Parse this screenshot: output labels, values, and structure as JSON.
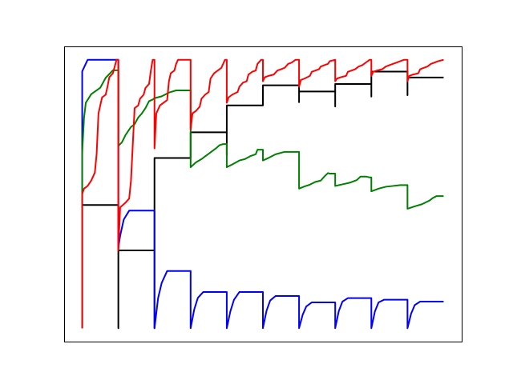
{
  "chart_data": {
    "type": "line",
    "title": "",
    "xlabel": "",
    "ylabel": "",
    "axes_ticks_visible": false,
    "grid": false,
    "legend": "none",
    "xlim": [
      -0.5,
      10.5
    ],
    "ylim": [
      -0.05,
      1.05
    ],
    "colors": {
      "black": "#000000",
      "blue": "#0000ff",
      "green": "#008000",
      "red": "#ff0000"
    },
    "series": [
      {
        "color": "black",
        "points": [
          [
            0,
            0
          ],
          [
            0,
            0.459
          ],
          [
            1,
            0.459
          ],
          [
            1,
            0.247
          ],
          [
            1,
            0
          ],
          [
            1,
            0.29
          ],
          [
            2,
            0.29
          ],
          [
            2,
            0
          ],
          [
            2,
            0.634
          ],
          [
            3,
            0.634
          ],
          [
            3,
            0.73
          ],
          [
            4,
            0.73
          ],
          [
            4,
            0.645
          ],
          [
            4,
            0.83
          ],
          [
            5,
            0.83
          ],
          [
            5,
            0.905
          ],
          [
            6,
            0.905
          ],
          [
            6,
            0.842
          ],
          [
            6,
            0.882
          ],
          [
            7,
            0.882
          ],
          [
            7,
            0.826
          ],
          [
            7,
            0.91
          ],
          [
            8,
            0.91
          ],
          [
            8,
            0.863
          ],
          [
            8,
            0.956
          ],
          [
            9,
            0.956
          ],
          [
            9,
            0.868
          ],
          [
            9,
            0.934
          ],
          [
            10,
            0.934
          ]
        ]
      },
      {
        "color": "blue",
        "points": [
          [
            0,
            0
          ],
          [
            0,
            0.957
          ],
          [
            0.15,
            1.0
          ],
          [
            1,
            1.0
          ],
          [
            1,
            0.3
          ],
          [
            1.05,
            0.344
          ],
          [
            1.15,
            0.405
          ],
          [
            1.3,
            0.438
          ],
          [
            2,
            0.438
          ],
          [
            2,
            0
          ],
          [
            2.1,
            0.112
          ],
          [
            2.2,
            0.169
          ],
          [
            2.35,
            0.213
          ],
          [
            3,
            0.213
          ],
          [
            3,
            0
          ],
          [
            3.1,
            0.07
          ],
          [
            3.2,
            0.113
          ],
          [
            3.35,
            0.135
          ],
          [
            4,
            0.135
          ],
          [
            4,
            0
          ],
          [
            4.1,
            0.063
          ],
          [
            4.2,
            0.106
          ],
          [
            4.35,
            0.135
          ],
          [
            5,
            0.135
          ],
          [
            5,
            0
          ],
          [
            5.1,
            0.065
          ],
          [
            5.2,
            0.103
          ],
          [
            5.35,
            0.12
          ],
          [
            6,
            0.12
          ],
          [
            6,
            0
          ],
          [
            6.1,
            0.05
          ],
          [
            6.2,
            0.081
          ],
          [
            6.35,
            0.096
          ],
          [
            7,
            0.096
          ],
          [
            7,
            0
          ],
          [
            7.1,
            0.064
          ],
          [
            7.2,
            0.099
          ],
          [
            7.35,
            0.112
          ],
          [
            8,
            0.112
          ],
          [
            8,
            0
          ],
          [
            8.1,
            0.063
          ],
          [
            8.2,
            0.096
          ],
          [
            8.35,
            0.106
          ],
          [
            9,
            0.106
          ],
          [
            9,
            0
          ],
          [
            9.1,
            0.054
          ],
          [
            9.2,
            0.086
          ],
          [
            9.35,
            0.099
          ],
          [
            10,
            0.099
          ]
        ]
      },
      {
        "color": "green",
        "points": [
          [
            0,
            0
          ],
          [
            0,
            0.655
          ],
          [
            0.05,
            0.783
          ],
          [
            0.1,
            0.84
          ],
          [
            0.25,
            0.872
          ],
          [
            0.5,
            0.896
          ],
          [
            0.65,
            0.933
          ],
          [
            0.8,
            0.954
          ],
          [
            0.85,
            0.961
          ],
          [
            1,
            0.961
          ],
          [
            1,
            0.679
          ],
          [
            1.1,
            0.693
          ],
          [
            1.2,
            0.72
          ],
          [
            1.35,
            0.75
          ],
          [
            1.45,
            0.76
          ],
          [
            1.55,
            0.785
          ],
          [
            1.65,
            0.8
          ],
          [
            1.75,
            0.82
          ],
          [
            1.85,
            0.846
          ],
          [
            1.95,
            0.852
          ],
          [
            2,
            0.857
          ],
          [
            2.2,
            0.864
          ],
          [
            2.4,
            0.878
          ],
          [
            2.6,
            0.886
          ],
          [
            3,
            0.886
          ],
          [
            3,
            0.6
          ],
          [
            3.15,
            0.618
          ],
          [
            3.3,
            0.63
          ],
          [
            3.5,
            0.65
          ],
          [
            3.7,
            0.67
          ],
          [
            3.8,
            0.682
          ],
          [
            3.9,
            0.686
          ],
          [
            4,
            0.686
          ],
          [
            4,
            0.6
          ],
          [
            4.15,
            0.61
          ],
          [
            4.35,
            0.625
          ],
          [
            4.5,
            0.63
          ],
          [
            4.65,
            0.641
          ],
          [
            4.8,
            0.648
          ],
          [
            4.85,
            0.665
          ],
          [
            5,
            0.665
          ],
          [
            5,
            0.625
          ],
          [
            5.15,
            0.634
          ],
          [
            5.35,
            0.648
          ],
          [
            5.6,
            0.657
          ],
          [
            6,
            0.657
          ],
          [
            6,
            0.52
          ],
          [
            6.15,
            0.528
          ],
          [
            6.3,
            0.535
          ],
          [
            6.45,
            0.545
          ],
          [
            6.6,
            0.55
          ],
          [
            6.7,
            0.565
          ],
          [
            6.8,
            0.578
          ],
          [
            6.85,
            0.576
          ],
          [
            7,
            0.576
          ],
          [
            7,
            0.53
          ],
          [
            7.2,
            0.536
          ],
          [
            7.4,
            0.542
          ],
          [
            7.6,
            0.552
          ],
          [
            7.7,
            0.565
          ],
          [
            7.85,
            0.565
          ],
          [
            7.95,
            0.562
          ],
          [
            8,
            0.562
          ],
          [
            8,
            0.51
          ],
          [
            8.2,
            0.52
          ],
          [
            8.4,
            0.527
          ],
          [
            8.6,
            0.53
          ],
          [
            8.8,
            0.533
          ],
          [
            9,
            0.533
          ],
          [
            9,
            0.445
          ],
          [
            9.2,
            0.454
          ],
          [
            9.4,
            0.462
          ],
          [
            9.6,
            0.475
          ],
          [
            9.7,
            0.485
          ],
          [
            9.8,
            0.492
          ],
          [
            10,
            0.492
          ]
        ]
      },
      {
        "color": "red",
        "points": [
          [
            0,
            0
          ],
          [
            0,
            0.5
          ],
          [
            0.05,
            0.52
          ],
          [
            0.15,
            0.53
          ],
          [
            0.25,
            0.55
          ],
          [
            0.35,
            0.58
          ],
          [
            0.4,
            0.65
          ],
          [
            0.45,
            0.8
          ],
          [
            0.55,
            0.86
          ],
          [
            0.65,
            0.87
          ],
          [
            0.7,
            0.9
          ],
          [
            0.75,
            0.935
          ],
          [
            0.85,
            0.95
          ],
          [
            0.9,
            0.975
          ],
          [
            0.95,
            1.0
          ],
          [
            1,
            1.0
          ],
          [
            1,
            0.29
          ],
          [
            1.05,
            0.45
          ],
          [
            1.2,
            0.468
          ],
          [
            1.3,
            0.483
          ],
          [
            1.35,
            0.55
          ],
          [
            1.45,
            0.82
          ],
          [
            1.55,
            0.83
          ],
          [
            1.6,
            0.855
          ],
          [
            1.7,
            0.87
          ],
          [
            1.75,
            0.895
          ],
          [
            1.85,
            0.91
          ],
          [
            1.9,
            0.96
          ],
          [
            1.95,
            1.0
          ],
          [
            2,
            1.0
          ],
          [
            2,
            0.67
          ],
          [
            2.05,
            0.8
          ],
          [
            2.15,
            0.83
          ],
          [
            2.3,
            0.845
          ],
          [
            2.35,
            0.85
          ],
          [
            2.4,
            0.92
          ],
          [
            2.45,
            0.95
          ],
          [
            2.55,
            0.96
          ],
          [
            2.6,
            0.985
          ],
          [
            2.65,
            1.0
          ],
          [
            3,
            1.0
          ],
          [
            3,
            0.74
          ],
          [
            3.05,
            0.8
          ],
          [
            3.15,
            0.81
          ],
          [
            3.25,
            0.825
          ],
          [
            3.3,
            0.855
          ],
          [
            3.4,
            0.87
          ],
          [
            3.5,
            0.88
          ],
          [
            3.55,
            0.93
          ],
          [
            3.65,
            0.95
          ],
          [
            3.75,
            0.96
          ],
          [
            3.85,
            0.97
          ],
          [
            3.9,
            0.985
          ],
          [
            3.95,
            1.0
          ],
          [
            4,
            1.0
          ],
          [
            4,
            0.84
          ],
          [
            4.05,
            0.86
          ],
          [
            4.15,
            0.87
          ],
          [
            4.3,
            0.88
          ],
          [
            4.35,
            0.9
          ],
          [
            4.45,
            0.915
          ],
          [
            4.55,
            0.92
          ],
          [
            4.6,
            0.945
          ],
          [
            4.7,
            0.955
          ],
          [
            4.8,
            0.96
          ],
          [
            4.85,
            0.985
          ],
          [
            4.95,
            1.0
          ],
          [
            5,
            1.0
          ],
          [
            5,
            0.92
          ],
          [
            5.05,
            0.935
          ],
          [
            5.15,
            0.94
          ],
          [
            5.3,
            0.945
          ],
          [
            5.4,
            0.96
          ],
          [
            5.5,
            0.965
          ],
          [
            5.6,
            0.97
          ],
          [
            5.7,
            0.985
          ],
          [
            5.8,
            0.99
          ],
          [
            5.9,
            1.0
          ],
          [
            6,
            1.0
          ],
          [
            6,
            0.9
          ],
          [
            6.05,
            0.925
          ],
          [
            6.15,
            0.93
          ],
          [
            6.3,
            0.94
          ],
          [
            6.35,
            0.955
          ],
          [
            6.45,
            0.96
          ],
          [
            6.55,
            0.965
          ],
          [
            6.6,
            0.975
          ],
          [
            6.7,
            0.98
          ],
          [
            6.8,
            0.985
          ],
          [
            6.85,
            0.995
          ],
          [
            7,
            1.0
          ],
          [
            7,
            0.92
          ],
          [
            7.05,
            0.93
          ],
          [
            7.15,
            0.935
          ],
          [
            7.3,
            0.94
          ],
          [
            7.35,
            0.955
          ],
          [
            7.45,
            0.96
          ],
          [
            7.55,
            0.965
          ],
          [
            7.65,
            0.975
          ],
          [
            7.75,
            0.98
          ],
          [
            7.85,
            0.99
          ],
          [
            7.95,
            1.0
          ],
          [
            8,
            1.0
          ],
          [
            8,
            0.94
          ],
          [
            8.05,
            0.955
          ],
          [
            8.15,
            0.96
          ],
          [
            8.3,
            0.965
          ],
          [
            8.4,
            0.975
          ],
          [
            8.5,
            0.98
          ],
          [
            8.6,
            0.985
          ],
          [
            8.7,
            0.99
          ],
          [
            8.8,
            0.995
          ],
          [
            8.9,
            1.0
          ],
          [
            9,
            1.0
          ],
          [
            9,
            0.92
          ],
          [
            9.05,
            0.94
          ],
          [
            9.15,
            0.945
          ],
          [
            9.3,
            0.95
          ],
          [
            9.35,
            0.965
          ],
          [
            9.45,
            0.97
          ],
          [
            9.55,
            0.975
          ],
          [
            9.65,
            0.985
          ],
          [
            9.75,
            0.99
          ],
          [
            9.85,
            0.995
          ],
          [
            10,
            1.0
          ]
        ]
      }
    ]
  }
}
